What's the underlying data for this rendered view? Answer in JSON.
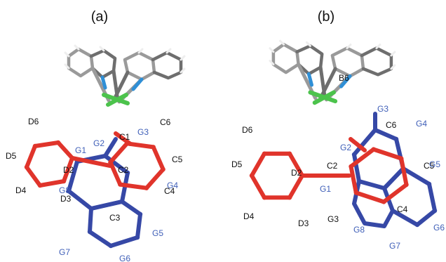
{
  "colors": {
    "red_ring": "#e0342b",
    "blue_ring": "#3648a6",
    "black_label": "#111111",
    "blue_label": "#3f5fb8",
    "framework_grey": "#9a9a9a",
    "framework_dark": "#6e6e6e",
    "nitrogen_blue": "#2f8fd6",
    "metal_green": "#4cc34c",
    "hydrogen_white": "#eeeeee"
  },
  "panels": [
    {
      "id": "a",
      "label": "(a)",
      "atom_labels": [
        {
          "text": "D6",
          "color": "black"
        },
        {
          "text": "D5",
          "color": "black"
        },
        {
          "text": "D4",
          "color": "black"
        },
        {
          "text": "D2",
          "color": "black"
        },
        {
          "text": "D3",
          "color": "black"
        },
        {
          "text": "C1",
          "color": "black"
        },
        {
          "text": "C2",
          "color": "black"
        },
        {
          "text": "C3",
          "color": "black"
        },
        {
          "text": "C4",
          "color": "black"
        },
        {
          "text": "C5",
          "color": "black"
        },
        {
          "text": "C6",
          "color": "black"
        },
        {
          "text": "G1",
          "color": "blue"
        },
        {
          "text": "G2",
          "color": "blue"
        },
        {
          "text": "G3",
          "color": "blue"
        },
        {
          "text": "G4",
          "color": "blue"
        },
        {
          "text": "G5",
          "color": "blue"
        },
        {
          "text": "G6",
          "color": "blue"
        },
        {
          "text": "G7",
          "color": "blue"
        },
        {
          "text": "G8",
          "color": "blue"
        }
      ]
    },
    {
      "id": "b",
      "label": "(b)",
      "atom_labels": [
        {
          "text": "B6",
          "color": "black"
        },
        {
          "text": "D6",
          "color": "black"
        },
        {
          "text": "D5",
          "color": "black"
        },
        {
          "text": "D4",
          "color": "black"
        },
        {
          "text": "D2",
          "color": "black"
        },
        {
          "text": "D3",
          "color": "black"
        },
        {
          "text": "C2",
          "color": "black"
        },
        {
          "text": "C4",
          "color": "black"
        },
        {
          "text": "C5",
          "color": "black"
        },
        {
          "text": "C6",
          "color": "black"
        },
        {
          "text": "G3",
          "color": "black"
        },
        {
          "text": "G1",
          "color": "blue"
        },
        {
          "text": "G2",
          "color": "blue"
        },
        {
          "text": "G3",
          "color": "blue"
        },
        {
          "text": "G4",
          "color": "blue"
        },
        {
          "text": "G5",
          "color": "blue"
        },
        {
          "text": "G6",
          "color": "blue"
        },
        {
          "text": "G7",
          "color": "blue"
        },
        {
          "text": "G8",
          "color": "blue"
        }
      ]
    }
  ]
}
